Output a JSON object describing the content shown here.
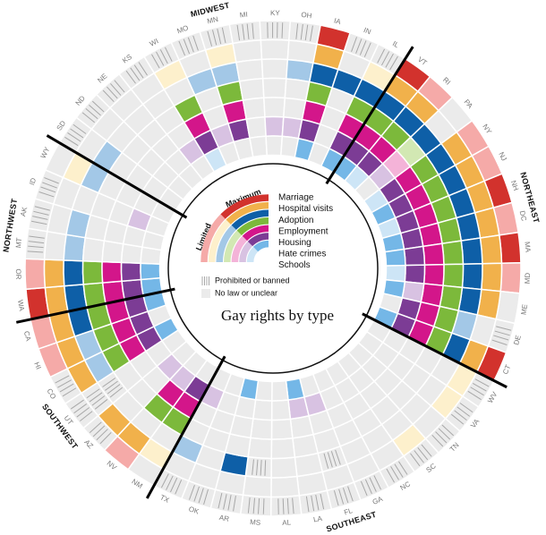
{
  "chart_data": {
    "type": "radial-heatmap",
    "title": "Gay rights by type",
    "legend": {
      "maximum": "Maximum",
      "limited": "Limited",
      "banned": "Prohibited or banned",
      "none": "No law or unclear"
    },
    "none_color": "#ebebeb",
    "hatch_color": "#a8a8a8",
    "rings": [
      {
        "name": "Marriage",
        "color": "#d2322d",
        "light_color": "#f5aaa8"
      },
      {
        "name": "Hospital visits",
        "color": "#f1b14b",
        "light_color": "#fdf0cc"
      },
      {
        "name": "Adoption",
        "color": "#0e5fa7",
        "light_color": "#a3c8e7"
      },
      {
        "name": "Employment",
        "color": "#7cb93b",
        "light_color": "#d2e8b3"
      },
      {
        "name": "Housing",
        "color": "#d3168a",
        "light_color": "#f4b3d8"
      },
      {
        "name": "Hate crimes",
        "color": "#7c3c95",
        "light_color": "#d8c2e2"
      },
      {
        "name": "Schools",
        "color": "#74b7e7",
        "light_color": "#cde5f6"
      }
    ],
    "regions": [
      {
        "name": "MIDWEST",
        "states": [
          {
            "name": "SD",
            "cells": [
              "Prohibited or banned",
              "No law or unclear",
              "Limited",
              "No law or unclear",
              "No law or unclear",
              "No law or unclear",
              "No law or unclear"
            ]
          },
          {
            "name": "ND",
            "cells": [
              "Prohibited or banned",
              "No law or unclear",
              "No law or unclear",
              "No law or unclear",
              "No law or unclear",
              "No law or unclear",
              "No law or unclear"
            ]
          },
          {
            "name": "NE",
            "cells": [
              "Prohibited or banned",
              "No law or unclear",
              "No law or unclear",
              "No law or unclear",
              "No law or unclear",
              "No law or unclear",
              "No law or unclear"
            ]
          },
          {
            "name": "KS",
            "cells": [
              "Prohibited or banned",
              "No law or unclear",
              "No law or unclear",
              "No law or unclear",
              "No law or unclear",
              "Limited",
              "No law or unclear"
            ]
          },
          {
            "name": "WI",
            "cells": [
              "Prohibited or banned",
              "Limited",
              "No law or unclear",
              "Maximum",
              "Maximum",
              "Maximum",
              "Limited"
            ]
          },
          {
            "name": "MO",
            "cells": [
              "Prohibited or banned",
              "No law or unclear",
              "Limited",
              "No law or unclear",
              "No law or unclear",
              "Limited",
              "No law or unclear"
            ]
          },
          {
            "name": "MN",
            "cells": [
              "Prohibited or banned",
              "Limited",
              "Limited",
              "Maximum",
              "Maximum",
              "Maximum",
              "No law or unclear"
            ]
          },
          {
            "name": "MI",
            "cells": [
              "Prohibited or banned",
              "No law or unclear",
              "No law or unclear",
              "No law or unclear",
              "No law or unclear",
              "No law or unclear",
              "No law or unclear"
            ]
          },
          {
            "name": "KY",
            "cells": [
              "Prohibited or banned",
              "No law or unclear",
              "No law or unclear",
              "No law or unclear",
              "No law or unclear",
              "Limited",
              "No law or unclear"
            ]
          },
          {
            "name": "OH",
            "cells": [
              "Prohibited or banned",
              "No law or unclear",
              "Limited",
              "No law or unclear",
              "No law or unclear",
              "Limited",
              "No law or unclear"
            ]
          },
          {
            "name": "IA",
            "cells": [
              "Maximum",
              "Maximum",
              "Maximum",
              "Maximum",
              "Maximum",
              "Maximum",
              "Maximum"
            ]
          },
          {
            "name": "IN",
            "cells": [
              "Prohibited or banned",
              "No law or unclear",
              "Maximum",
              "No law or unclear",
              "No law or unclear",
              "No law or unclear",
              "No law or unclear"
            ]
          },
          {
            "name": "IL",
            "cells": [
              "Prohibited or banned",
              "Limited",
              "Maximum",
              "Maximum",
              "Maximum",
              "Maximum",
              "Maximum"
            ]
          }
        ]
      },
      {
        "name": "NORTHEAST",
        "states": [
          {
            "name": "VT",
            "cells": [
              "Maximum",
              "Maximum",
              "Maximum",
              "Maximum",
              "Maximum",
              "Maximum",
              "Maximum"
            ]
          },
          {
            "name": "RI",
            "cells": [
              "Limited",
              "Maximum",
              "Maximum",
              "Maximum",
              "Maximum",
              "Maximum",
              "Limited"
            ]
          },
          {
            "name": "PA",
            "cells": [
              "No law or unclear",
              "No law or unclear",
              "Maximum",
              "Limited",
              "Limited",
              "Limited",
              "No law or unclear"
            ]
          },
          {
            "name": "NY",
            "cells": [
              "Limited",
              "Maximum",
              "Maximum",
              "Maximum",
              "Maximum",
              "Maximum",
              "Limited"
            ]
          },
          {
            "name": "NJ",
            "cells": [
              "Limited",
              "Maximum",
              "Maximum",
              "Maximum",
              "Maximum",
              "Maximum",
              "Maximum"
            ]
          },
          {
            "name": "NH",
            "cells": [
              "Maximum",
              "Maximum",
              "Maximum",
              "Maximum",
              "Maximum",
              "Maximum",
              "Limited"
            ]
          },
          {
            "name": "DC",
            "cells": [
              "Limited",
              "Maximum",
              "Maximum",
              "Maximum",
              "Maximum",
              "Maximum",
              "Maximum"
            ]
          },
          {
            "name": "MA",
            "cells": [
              "Maximum",
              "Maximum",
              "Maximum",
              "Maximum",
              "Maximum",
              "Maximum",
              "Maximum"
            ]
          },
          {
            "name": "MD",
            "cells": [
              "Limited",
              "Maximum",
              "Maximum",
              "Maximum",
              "Maximum",
              "Maximum",
              "Limited"
            ]
          },
          {
            "name": "ME",
            "cells": [
              "No law or unclear",
              "Maximum",
              "Maximum",
              "Maximum",
              "Maximum",
              "Limited",
              "Maximum"
            ]
          },
          {
            "name": "DE",
            "cells": [
              "Prohibited or banned",
              "No law or unclear",
              "Limited",
              "Maximum",
              "Maximum",
              "Maximum",
              "No law or unclear"
            ]
          },
          {
            "name": "CT",
            "cells": [
              "Maximum",
              "Maximum",
              "Maximum",
              "Maximum",
              "Maximum",
              "Maximum",
              "Maximum"
            ]
          }
        ]
      },
      {
        "name": "SOUTHEAST",
        "states": [
          {
            "name": "WV",
            "cells": [
              "Prohibited or banned",
              "Limited",
              "No law or unclear",
              "No law or unclear",
              "No law or unclear",
              "No law or unclear",
              "No law or unclear"
            ]
          },
          {
            "name": "VA",
            "cells": [
              "Prohibited or banned",
              "Limited",
              "No law or unclear",
              "No law or unclear",
              "No law or unclear",
              "No law or unclear",
              "No law or unclear"
            ]
          },
          {
            "name": "TN",
            "cells": [
              "Prohibited or banned",
              "No law or unclear",
              "No law or unclear",
              "No law or unclear",
              "No law or unclear",
              "No law or unclear",
              "No law or unclear"
            ]
          },
          {
            "name": "SC",
            "cells": [
              "Prohibited or banned",
              "Limited",
              "No law or unclear",
              "No law or unclear",
              "No law or unclear",
              "No law or unclear",
              "No law or unclear"
            ]
          },
          {
            "name": "NC",
            "cells": [
              "Prohibited or banned",
              "No law or unclear",
              "No law or unclear",
              "No law or unclear",
              "No law or unclear",
              "No law or unclear",
              "No law or unclear"
            ]
          },
          {
            "name": "GA",
            "cells": [
              "Prohibited or banned",
              "No law or unclear",
              "No law or unclear",
              "No law or unclear",
              "No law or unclear",
              "No law or unclear",
              "No law or unclear"
            ]
          },
          {
            "name": "FL",
            "cells": [
              "Prohibited or banned",
              "No law or unclear",
              "Prohibited or banned",
              "No law or unclear",
              "No law or unclear",
              "Limited",
              "No law or unclear"
            ]
          },
          {
            "name": "LA",
            "cells": [
              "Prohibited or banned",
              "No law or unclear",
              "No law or unclear",
              "No law or unclear",
              "No law or unclear",
              "Limited",
              "Maximum"
            ]
          },
          {
            "name": "AL",
            "cells": [
              "Prohibited or banned",
              "No law or unclear",
              "No law or unclear",
              "No law or unclear",
              "No law or unclear",
              "No law or unclear",
              "No law or unclear"
            ]
          },
          {
            "name": "MS",
            "cells": [
              "Prohibited or banned",
              "No law or unclear",
              "Prohibited or banned",
              "No law or unclear",
              "No law or unclear",
              "No law or unclear",
              "No law or unclear"
            ]
          },
          {
            "name": "AR",
            "cells": [
              "Prohibited or banned",
              "No law or unclear",
              "Maximum",
              "No law or unclear",
              "No law or unclear",
              "No law or unclear",
              "Maximum"
            ]
          },
          {
            "name": "OK",
            "cells": [
              "Prohibited or banned",
              "No law or unclear",
              "No law or unclear",
              "No law or unclear",
              "No law or unclear",
              "No law or unclear",
              "No law or unclear"
            ]
          },
          {
            "name": "TX",
            "cells": [
              "Prohibited or banned",
              "No law or unclear",
              "Limited",
              "No law or unclear",
              "No law or unclear",
              "Limited",
              "No law or unclear"
            ]
          }
        ]
      },
      {
        "name": "SOUTHWEST",
        "states": [
          {
            "name": "NM",
            "cells": [
              "No law or unclear",
              "Limited",
              "No law or unclear",
              "Maximum",
              "Maximum",
              "Maximum",
              "No law or unclear"
            ]
          },
          {
            "name": "NV",
            "cells": [
              "Limited",
              "Maximum",
              "No law or unclear",
              "Maximum",
              "Maximum",
              "Limited",
              "No law or unclear"
            ]
          },
          {
            "name": "AZ",
            "cells": [
              "Prohibited or banned",
              "Maximum",
              "No law or unclear",
              "No law or unclear",
              "No law or unclear",
              "Limited",
              "No law or unclear"
            ]
          },
          {
            "name": "UT",
            "cells": [
              "Prohibited or banned",
              "Prohibited or banned",
              "Prohibited or banned",
              "No law or unclear",
              "No law or unclear",
              "No law or unclear",
              "No law or unclear"
            ]
          },
          {
            "name": "CO",
            "cells": [
              "Prohibited or banned",
              "Maximum",
              "Limited",
              "Maximum",
              "Maximum",
              "Maximum",
              "Maximum"
            ]
          },
          {
            "name": "HI",
            "cells": [
              "Limited",
              "Maximum",
              "Limited",
              "Maximum",
              "Maximum",
              "Maximum",
              "No law or unclear"
            ]
          },
          {
            "name": "CA",
            "cells": [
              "Limited",
              "Maximum",
              "Maximum",
              "Maximum",
              "Maximum",
              "Maximum",
              "Maximum"
            ]
          }
        ]
      },
      {
        "name": "NORTHWEST",
        "states": [
          {
            "name": "WA",
            "cells": [
              "Maximum",
              "Maximum",
              "Maximum",
              "Maximum",
              "Maximum",
              "Maximum",
              "Maximum"
            ]
          },
          {
            "name": "OR",
            "cells": [
              "Limited",
              "Maximum",
              "Maximum",
              "Maximum",
              "Maximum",
              "Maximum",
              "Maximum"
            ]
          },
          {
            "name": "MT",
            "cells": [
              "Prohibited or banned",
              "No law or unclear",
              "Limited",
              "No law or unclear",
              "No law or unclear",
              "No law or unclear",
              "No law or unclear"
            ]
          },
          {
            "name": "AK",
            "cells": [
              "Prohibited or banned",
              "No law or unclear",
              "Limited",
              "No law or unclear",
              "No law or unclear",
              "No law or unclear",
              "No law or unclear"
            ]
          },
          {
            "name": "ID",
            "cells": [
              "Prohibited or banned",
              "No law or unclear",
              "No law or unclear",
              "No law or unclear",
              "No law or unclear",
              "Limited",
              "No law or unclear"
            ]
          },
          {
            "name": "WY",
            "cells": [
              "No law or unclear",
              "Limited",
              "Limited",
              "No law or unclear",
              "No law or unclear",
              "No law or unclear",
              "No law or unclear"
            ]
          }
        ]
      }
    ]
  }
}
